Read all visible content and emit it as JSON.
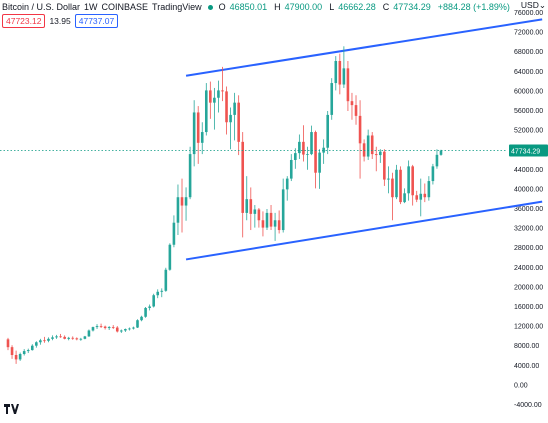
{
  "header": {
    "symbol": "Bitcoin / U.S. Dollar",
    "interval": "1W",
    "exchange": "COINBASE",
    "platform": "TradingView",
    "open_label": "O",
    "open": "46850.01",
    "high_label": "H",
    "high": "47900.00",
    "low_label": "L",
    "low": "46662.28",
    "close_label": "C",
    "close": "47734.29",
    "change": "+884.28 (+1.89%)",
    "status_color": "#089981"
  },
  "quote": {
    "bid": "47723.12",
    "spread": "13.95",
    "ask": "47737.07",
    "bid_color": "#f23645",
    "ask_color": "#2962ff"
  },
  "currency_label": "USD",
  "colors": {
    "up": "#26a69a",
    "down": "#ef5350",
    "trendline": "#2962ff",
    "last_price": "#089981",
    "axis_text": "#131722"
  },
  "chart_data": {
    "type": "candlestick",
    "title": "",
    "xlabel": "",
    "ylabel": "",
    "ylim": [
      -4000,
      77000
    ],
    "y_ticks": [
      76000,
      72000,
      68000,
      64000,
      60000,
      56000,
      52000,
      48000,
      44000,
      40000,
      36000,
      32000,
      28000,
      24000,
      20000,
      16000,
      12000,
      8000,
      4000,
      0,
      -4000
    ],
    "y_tick_labels": [
      "76000.00",
      "72000.00",
      "68000.00",
      "64000.00",
      "60000.00",
      "56000.00",
      "52000.00",
      "48000.00",
      "44000.00",
      "40000.00",
      "36000.00",
      "32000.00",
      "28000.00",
      "24000.00",
      "20000.00",
      "16000.00",
      "12000.00",
      "8000.00",
      "4000.00",
      "0.00",
      "-4000.00"
    ],
    "grid": false,
    "last_price": 47734.29,
    "last_price_label": "47734.29",
    "candles": [
      [
        9200,
        9500,
        7000,
        7600
      ],
      [
        7600,
        8000,
        5200,
        6000
      ],
      [
        6000,
        6900,
        4200,
        5100
      ],
      [
        5100,
        6500,
        4800,
        6200
      ],
      [
        6200,
        7200,
        5900,
        6800
      ],
      [
        6800,
        7300,
        6400,
        7000
      ],
      [
        7000,
        8200,
        6900,
        7900
      ],
      [
        7900,
        8800,
        7500,
        8600
      ],
      [
        8600,
        9300,
        8100,
        9000
      ],
      [
        9000,
        9700,
        8500,
        8900
      ],
      [
        8900,
        9600,
        8600,
        9300
      ],
      [
        9300,
        10000,
        9000,
        9600
      ],
      [
        9600,
        10100,
        9300,
        9800
      ],
      [
        9800,
        10300,
        9500,
        9700
      ],
      [
        9700,
        10000,
        9200,
        9300
      ],
      [
        9300,
        9700,
        9000,
        9500
      ],
      [
        9500,
        9800,
        9100,
        9400
      ],
      [
        9400,
        9600,
        9000,
        9200
      ],
      [
        9200,
        9500,
        8900,
        9300
      ],
      [
        9300,
        9900,
        9200,
        9800
      ],
      [
        9800,
        11200,
        9700,
        11000
      ],
      [
        11000,
        11800,
        10800,
        11700
      ],
      [
        11700,
        12300,
        11300,
        11900
      ],
      [
        11900,
        12400,
        11500,
        11800
      ],
      [
        11800,
        12000,
        11200,
        11500
      ],
      [
        11500,
        11900,
        11100,
        11700
      ],
      [
        11700,
        12100,
        11300,
        11600
      ],
      [
        11600,
        11900,
        10600,
        10800
      ],
      [
        10800,
        11200,
        10500,
        11000
      ],
      [
        11000,
        11400,
        10700,
        11300
      ],
      [
        11300,
        11600,
        11000,
        11400
      ],
      [
        11400,
        11800,
        11200,
        11600
      ],
      [
        11600,
        13300,
        11500,
        13100
      ],
      [
        13100,
        14000,
        12900,
        13800
      ],
      [
        13800,
        15800,
        13600,
        15600
      ],
      [
        15600,
        16300,
        15100,
        15900
      ],
      [
        15900,
        18500,
        15700,
        18200
      ],
      [
        18200,
        19400,
        17600,
        18900
      ],
      [
        18900,
        19600,
        17800,
        19100
      ],
      [
        19100,
        23800,
        18900,
        23400
      ],
      [
        23400,
        28800,
        23200,
        28500
      ],
      [
        28500,
        34500,
        28000,
        33000
      ],
      [
        33000,
        40800,
        30500,
        38200
      ],
      [
        38200,
        42000,
        31000,
        36500
      ],
      [
        36500,
        40200,
        33400,
        38200
      ],
      [
        38200,
        48500,
        37800,
        47000
      ],
      [
        47000,
        58000,
        44500,
        55500
      ],
      [
        55500,
        56800,
        45000,
        49300
      ],
      [
        49300,
        53500,
        47000,
        51500
      ],
      [
        51500,
        61500,
        50800,
        60000
      ],
      [
        60000,
        61800,
        54200,
        57500
      ],
      [
        57500,
        60500,
        52000,
        58500
      ],
      [
        58500,
        62000,
        55500,
        60000
      ],
      [
        60000,
        64800,
        57800,
        59800
      ],
      [
        59800,
        60800,
        51000,
        53500
      ],
      [
        53500,
        56500,
        48000,
        55000
      ],
      [
        55000,
        59500,
        49800,
        57500
      ],
      [
        57500,
        59000,
        46800,
        49500
      ],
      [
        49500,
        51500,
        30000,
        35000
      ],
      [
        35000,
        42500,
        33500,
        37800
      ],
      [
        37800,
        40200,
        31500,
        34800
      ],
      [
        34800,
        36600,
        32000,
        35700
      ],
      [
        35700,
        36000,
        32000,
        33500
      ],
      [
        33500,
        35300,
        30200,
        32000
      ],
      [
        32000,
        35800,
        31500,
        35000
      ],
      [
        35000,
        36600,
        31500,
        32200
      ],
      [
        32200,
        35000,
        29300,
        33500
      ],
      [
        33500,
        35500,
        30800,
        31500
      ],
      [
        31500,
        42000,
        31000,
        39800
      ],
      [
        39800,
        42500,
        37500,
        42000
      ],
      [
        42000,
        47000,
        41500,
        45800
      ],
      [
        45800,
        48200,
        44000,
        47200
      ],
      [
        47200,
        51000,
        46000,
        49500
      ],
      [
        49500,
        52900,
        45500,
        46900
      ],
      [
        46900,
        48500,
        43800,
        47000
      ],
      [
        47000,
        52800,
        46800,
        51500
      ],
      [
        51500,
        51800,
        40000,
        43200
      ],
      [
        43200,
        48000,
        39900,
        47300
      ],
      [
        47300,
        50000,
        45000,
        48300
      ],
      [
        48300,
        55800,
        47000,
        55000
      ],
      [
        55000,
        62500,
        54000,
        61500
      ],
      [
        61500,
        67000,
        60000,
        66000
      ],
      [
        66000,
        67500,
        59200,
        61200
      ],
      [
        61200,
        69000,
        60500,
        64500
      ],
      [
        64500,
        66000,
        55800,
        57800
      ],
      [
        57800,
        59500,
        54000,
        57000
      ],
      [
        57000,
        59000,
        53000,
        54800
      ],
      [
        54800,
        58000,
        42000,
        49200
      ],
      [
        49200,
        50000,
        45500,
        46500
      ],
      [
        46500,
        52000,
        45800,
        50800
      ],
      [
        50800,
        51500,
        46000,
        47000
      ],
      [
        47000,
        48500,
        43500,
        46800
      ],
      [
        46800,
        48000,
        45200,
        47500
      ],
      [
        47500,
        48000,
        40500,
        41800
      ],
      [
        41800,
        44500,
        39000,
        42000
      ],
      [
        42000,
        43200,
        33500,
        38200
      ],
      [
        38200,
        44800,
        37800,
        43800
      ],
      [
        43800,
        44500,
        36800,
        37200
      ],
      [
        37200,
        40000,
        37000,
        39000
      ],
      [
        39000,
        45700,
        37500,
        44500
      ],
      [
        44500,
        44800,
        36500,
        38600
      ],
      [
        38600,
        39500,
        37200,
        37700
      ],
      [
        37700,
        42000,
        34300,
        38900
      ],
      [
        38900,
        41000,
        37200,
        38200
      ],
      [
        38200,
        42500,
        37500,
        41500
      ],
      [
        41500,
        45000,
        40800,
        44500
      ],
      [
        44500,
        48000,
        44000,
        46850
      ],
      [
        46850,
        47900,
        46662,
        47734
      ]
    ],
    "trendlines": [
      {
        "start": [
          44,
          63000
        ],
        "end": [
          132,
          74500
        ]
      },
      {
        "start": [
          44,
          25500
        ],
        "end": [
          132,
          37300
        ]
      }
    ],
    "overlay_labels": [
      {
        "text": "47723.12"
      },
      {
        "text": "13.95"
      },
      {
        "text": "47737.07"
      }
    ]
  }
}
